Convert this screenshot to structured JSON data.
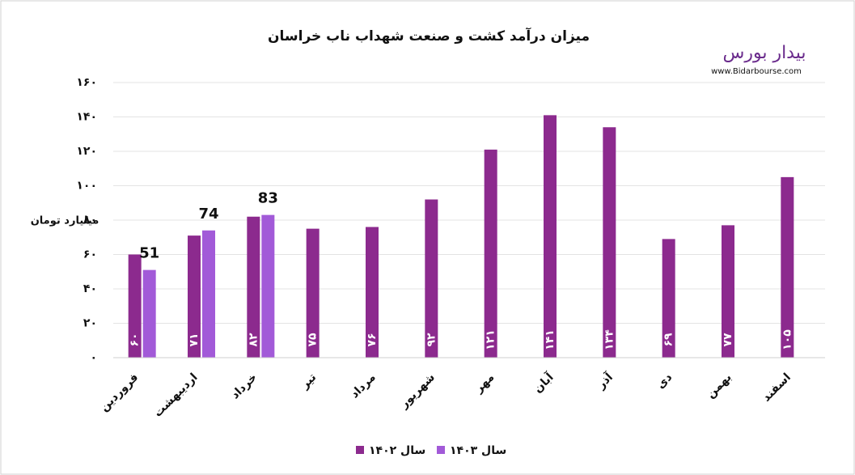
{
  "chart_data": {
    "type": "bar",
    "title": "میزان درآمد کشت و صنعت شهداب ناب خراسان",
    "y_label": "میلیارد تومان",
    "logo_text": "بیدار بورس",
    "logo_url": "www.Bidarbourse.com",
    "categories": [
      "فروردین",
      "اردیبهشت",
      "خرداد",
      "تیر",
      "مرداد",
      "شهریور",
      "مهر",
      "آبان",
      "آذر",
      "دی",
      "بهمن",
      "اسفند"
    ],
    "series": [
      {
        "name": "سال ۱۴۰۲",
        "color": "#8c2a8e",
        "values": [
          60,
          71,
          82,
          75,
          76,
          92,
          121,
          141,
          134,
          69,
          77,
          105
        ],
        "value_labels": [
          "۶۰",
          "۷۱",
          "۸۲",
          "۷۵",
          "۷۶",
          "۹۲",
          "۱۲۱",
          "۱۴۱",
          "۱۳۴",
          "۶۹",
          "۷۷",
          "۱۰۵"
        ]
      },
      {
        "name": "سال ۱۴۰۳",
        "color": "#a25ad8",
        "values": [
          51,
          74,
          83,
          null,
          null,
          null,
          null,
          null,
          null,
          null,
          null,
          null
        ]
      }
    ],
    "ylim": [
      0,
      160
    ],
    "yticks": [
      {
        "value": 0,
        "label": "۰"
      },
      {
        "value": 20,
        "label": "۲۰"
      },
      {
        "value": 40,
        "label": "۴۰"
      },
      {
        "value": 60,
        "label": "۶۰"
      },
      {
        "value": 80,
        "label": "۸۰"
      },
      {
        "value": 100,
        "label": "۱۰۰"
      },
      {
        "value": 120,
        "label": "۱۲۰"
      },
      {
        "value": 140,
        "label": "۱۴۰"
      },
      {
        "value": 160,
        "label": "۱۶۰"
      }
    ],
    "grid": true,
    "legend": "bottom"
  }
}
